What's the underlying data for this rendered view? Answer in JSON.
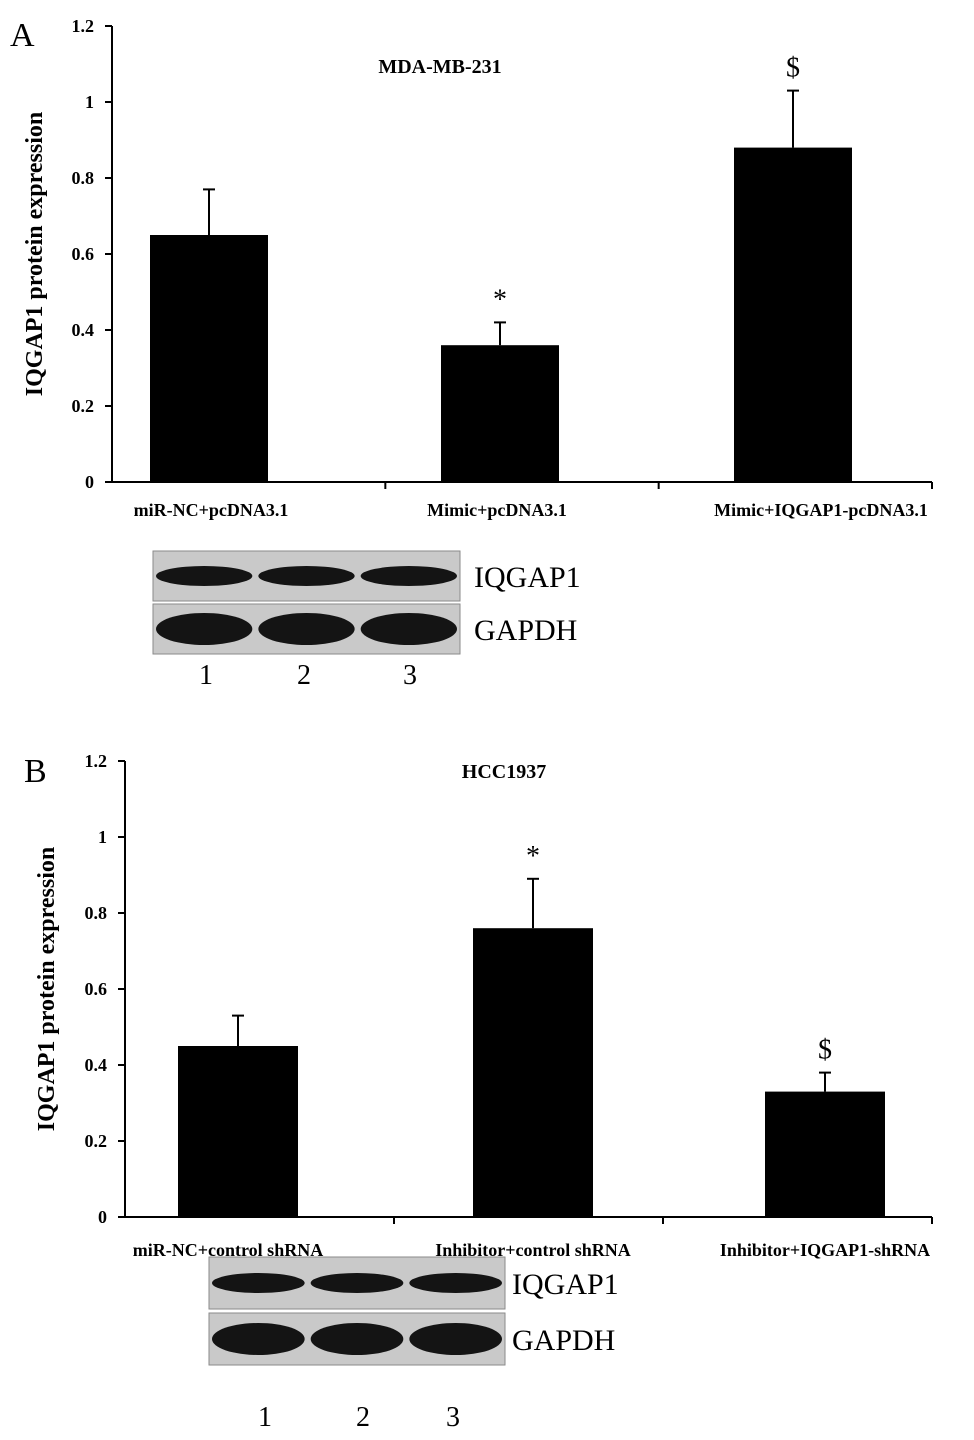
{
  "chart_data": [
    {
      "panel": "A",
      "type": "bar",
      "title": "MDA-MB-231",
      "ylabel": "IQGAP1 protein expression",
      "xlabel": "",
      "ylim": [
        0,
        1.2
      ],
      "yticks": [
        "0",
        "0.2",
        "0.4",
        "0.6",
        "0.8",
        "1",
        "1.2"
      ],
      "categories": [
        "miR-NC+pcDNA3.1",
        "Mimic+pcDNA3.1",
        "Mimic+IQGAP1-pcDNA3.1"
      ],
      "values": [
        0.65,
        0.36,
        0.88
      ],
      "errors": [
        0.12,
        0.06,
        0.15
      ],
      "annotations": [
        "",
        "*",
        "$"
      ],
      "blot": {
        "rows": [
          "IQGAP1",
          "GAPDH"
        ],
        "lanes": [
          "1",
          "2",
          "3"
        ]
      }
    },
    {
      "panel": "B",
      "type": "bar",
      "title": "HCC1937",
      "ylabel": "IQGAP1 protein expression",
      "xlabel": "",
      "ylim": [
        0,
        1.2
      ],
      "yticks": [
        "0",
        "0.2",
        "0.4",
        "0.6",
        "0.8",
        "1",
        "1.2"
      ],
      "categories": [
        "miR-NC+control shRNA",
        "Inhibitor+control shRNA",
        "Inhibitor+IQGAP1-shRNA"
      ],
      "values": [
        0.45,
        0.76,
        0.33
      ],
      "errors": [
        0.08,
        0.13,
        0.05
      ],
      "annotations": [
        "",
        "*",
        "$"
      ],
      "blot": {
        "rows": [
          "IQGAP1",
          "GAPDH"
        ],
        "lanes": [
          "1",
          "2",
          "3"
        ]
      }
    }
  ],
  "colors": {
    "bar": "#000000",
    "blot_background": "#c9c9c9",
    "band": "#141414"
  }
}
